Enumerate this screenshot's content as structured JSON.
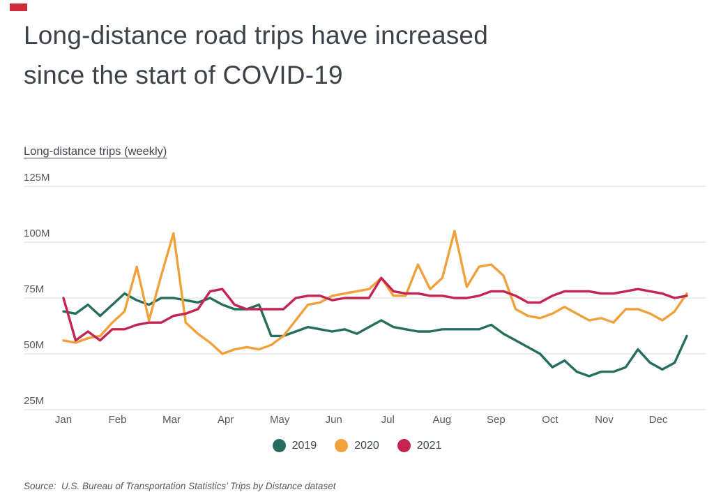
{
  "brand": {
    "mark_color": "#cf2b3c"
  },
  "header": {
    "title_line1": "Long-distance road trips have increased",
    "title_line2": "since the start of COVID-19"
  },
  "axis": {
    "title": "Long-distance trips (weekly)",
    "grid_color": "#dcdcdc",
    "label_color": "#55585c"
  },
  "source": {
    "text": "Source:  U.S. Bureau of Transportation Statistics’ Trips by Distance dataset"
  },
  "chart_data": {
    "type": "line",
    "title": "Long-distance trips (weekly)",
    "x_unit": "week of year (52 weekly points per series)",
    "x_tick_labels": [
      "Jan",
      "Feb",
      "Mar",
      "Apr",
      "May",
      "Jun",
      "Jul",
      "Aug",
      "Sep",
      "Oct",
      "Nov",
      "Dec"
    ],
    "y_ticks": [
      25,
      50,
      75,
      100,
      125
    ],
    "y_tick_suffix": "M",
    "ylim": [
      25,
      125
    ],
    "values_unit": "millions of weekly long-distance trips",
    "grid": true,
    "legend_position": "bottom-center",
    "series": [
      {
        "name": "2019",
        "color": "#266d60",
        "values": [
          69,
          68,
          72,
          67,
          72,
          77,
          74,
          72,
          75,
          75,
          74,
          73,
          75,
          72,
          70,
          70,
          72,
          58,
          58,
          60,
          62,
          61,
          60,
          61,
          59,
          62,
          65,
          62,
          61,
          60,
          60,
          61,
          61,
          61,
          61,
          63,
          59,
          56,
          53,
          50,
          44,
          47,
          42,
          40,
          42,
          42,
          44,
          52,
          46,
          43,
          46,
          58
        ]
      },
      {
        "name": "2020",
        "color": "#f0a13c",
        "values": [
          56,
          55,
          57,
          58,
          64,
          69,
          89,
          65,
          85,
          104,
          64,
          59,
          55,
          50,
          52,
          53,
          52,
          54,
          58,
          65,
          72,
          73,
          76,
          77,
          78,
          79,
          84,
          76,
          76,
          90,
          79,
          84,
          105,
          80,
          89,
          90,
          85,
          70,
          67,
          66,
          68,
          71,
          68,
          65,
          66,
          64,
          70,
          70,
          68,
          65,
          69,
          77
        ]
      },
      {
        "name": "2021",
        "color": "#c32450",
        "values": [
          75,
          56,
          60,
          56,
          61,
          61,
          63,
          64,
          64,
          67,
          68,
          70,
          78,
          79,
          72,
          70,
          70,
          70,
          70,
          75,
          76,
          76,
          74,
          75,
          75,
          75,
          84,
          78,
          77,
          77,
          76,
          76,
          75,
          75,
          76,
          78,
          78,
          76,
          73,
          73,
          76,
          78,
          78,
          78,
          77,
          77,
          78,
          79,
          78,
          77,
          75,
          76
        ]
      }
    ]
  }
}
